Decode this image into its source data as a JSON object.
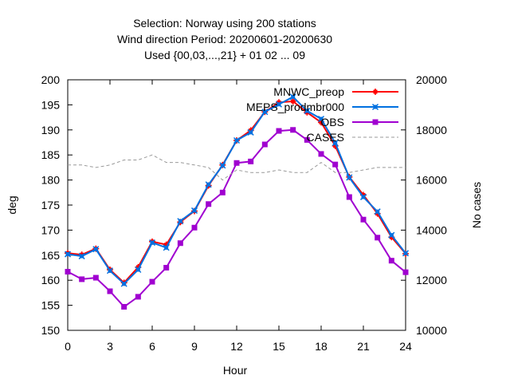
{
  "chart_data": {
    "type": "line",
    "title_lines": [
      "Selection: Norway using   200 stations",
      "Wind direction   Period: 20200601-20200630",
      "Used {00,03,...,21} + 01 02 ... 09"
    ],
    "xlabel": "Hour",
    "ylabel": "deg",
    "y2label": "No cases",
    "xlim": [
      0,
      24
    ],
    "ylim": [
      150,
      200
    ],
    "y2lim": [
      10000,
      20000
    ],
    "x_ticks": [
      "0",
      "3",
      "6",
      "9",
      "12",
      "15",
      "18",
      "21",
      "24"
    ],
    "y_ticks": [
      "150",
      "155",
      "160",
      "165",
      "170",
      "175",
      "180",
      "185",
      "190",
      "195",
      "200"
    ],
    "y2_ticks": [
      "10000",
      "12000",
      "14000",
      "16000",
      "18000",
      "20000"
    ],
    "legend_position": "top-right",
    "grid": false,
    "x": [
      0,
      1,
      2,
      3,
      4,
      5,
      6,
      7,
      8,
      9,
      10,
      11,
      12,
      13,
      14,
      15,
      16,
      17,
      18,
      19,
      20,
      21,
      22,
      23,
      24
    ],
    "series": [
      {
        "name": "MNWC_preop",
        "color": "#ff0000",
        "marker": "plus",
        "axis": "y",
        "values": [
          165.4,
          165.1,
          166.3,
          162.1,
          159.5,
          162.6,
          167.7,
          167.1,
          171.6,
          173.8,
          178.9,
          183.0,
          187.9,
          189.9,
          193.6,
          195.5,
          195.7,
          193.5,
          191.5,
          186.8,
          180.6,
          177.0,
          173.3,
          168.6,
          165.3
        ]
      },
      {
        "name": "MEPS_prodmbr000",
        "color": "#0070e0",
        "marker": "x",
        "axis": "y",
        "values": [
          165.2,
          164.8,
          166.2,
          161.9,
          159.3,
          162.1,
          167.5,
          166.5,
          171.8,
          173.9,
          179.1,
          182.9,
          187.9,
          189.5,
          193.6,
          195.1,
          196.6,
          193.8,
          192.2,
          187.4,
          180.5,
          176.6,
          173.7,
          169.0,
          165.4
        ]
      },
      {
        "name": "OBS",
        "color": "#a000d0",
        "marker": "square",
        "axis": "y",
        "values": [
          161.7,
          160.2,
          160.5,
          157.8,
          154.7,
          156.7,
          159.7,
          162.5,
          167.4,
          170.5,
          175.2,
          177.5,
          183.4,
          183.7,
          187.1,
          189.8,
          190.0,
          188.0,
          185.2,
          183.1,
          176.6,
          172.1,
          168.5,
          163.9,
          161.6
        ]
      },
      {
        "name": "CASES",
        "color": "#999999",
        "marker": "none",
        "dashed": true,
        "axis": "y2",
        "values": [
          16600,
          16600,
          16500,
          16600,
          16800,
          16800,
          17000,
          16700,
          16700,
          16600,
          16500,
          16000,
          16400,
          16300,
          16300,
          16400,
          16300,
          16300,
          16700,
          16300,
          16300,
          16400,
          16500,
          16500,
          16500
        ]
      }
    ]
  }
}
